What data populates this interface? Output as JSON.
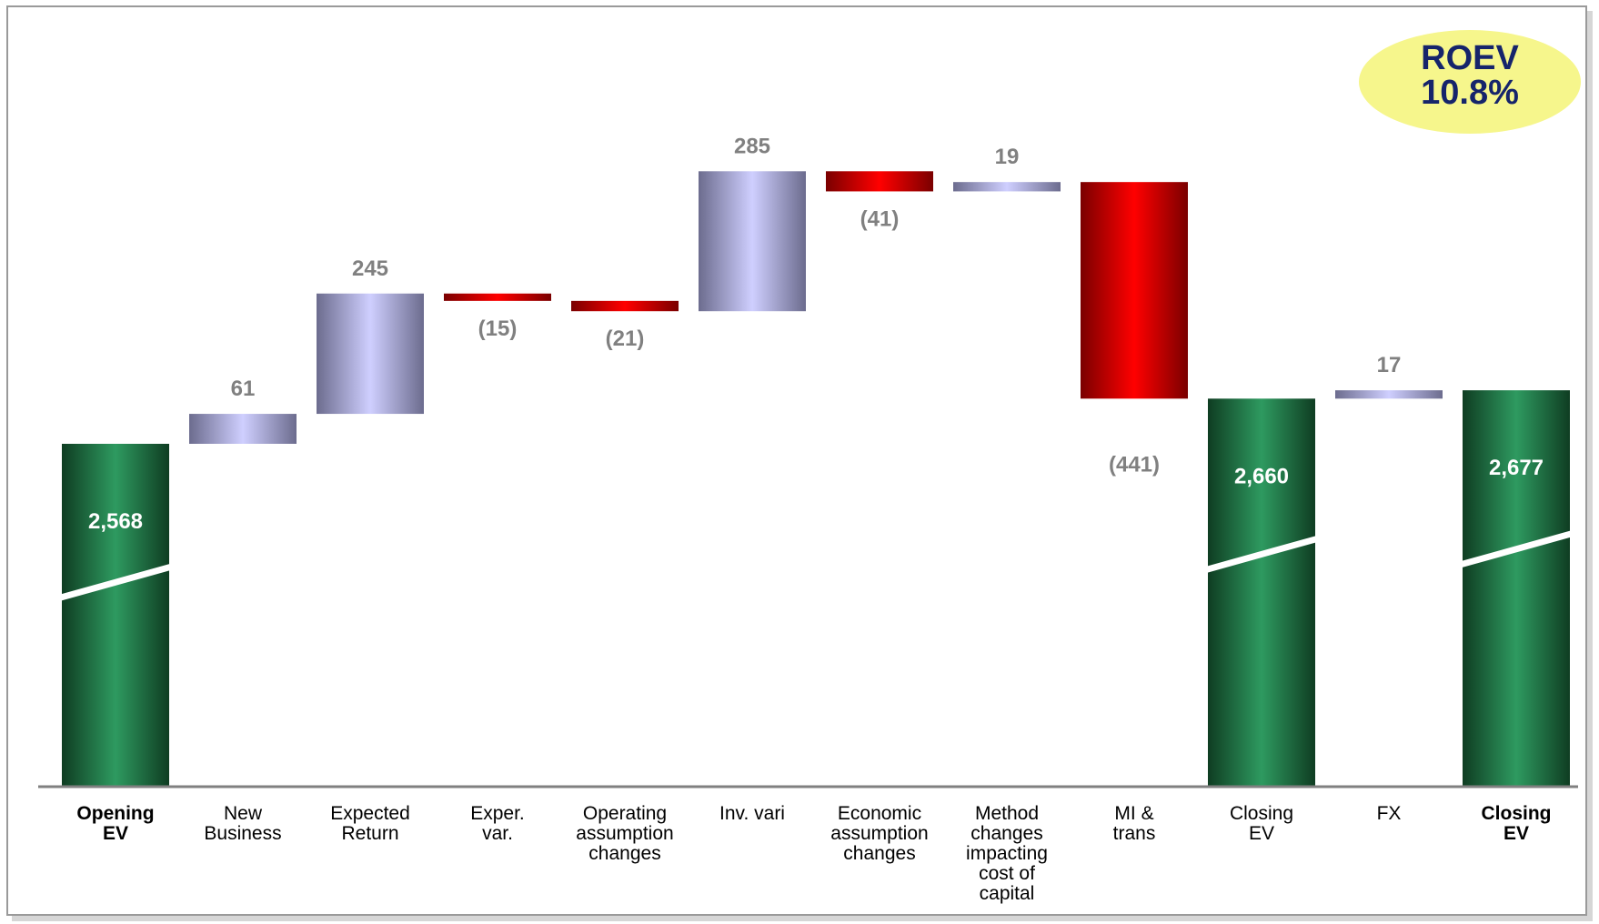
{
  "chart_data": {
    "type": "bar",
    "subtype": "waterfall",
    "categories": [
      [
        "Opening",
        "EV"
      ],
      [
        "New",
        "Business"
      ],
      [
        "Expected",
        "Return"
      ],
      [
        "Exper.",
        "var."
      ],
      [
        "Operating",
        "assumption",
        "changes"
      ],
      [
        "Inv. vari"
      ],
      [
        "Economic",
        "assumption",
        "changes"
      ],
      [
        "Method",
        "changes",
        "impacting",
        "cost of",
        "capital"
      ],
      [
        "MI &",
        "trans"
      ],
      [
        "Closing",
        "EV"
      ],
      [
        "FX"
      ],
      [
        "Closing",
        "EV"
      ]
    ],
    "category_bold": [
      true,
      false,
      false,
      false,
      false,
      false,
      false,
      false,
      false,
      false,
      false,
      true
    ],
    "kinds": [
      "total",
      "delta",
      "delta",
      "delta",
      "delta",
      "delta",
      "delta",
      "delta",
      "delta",
      "total",
      "delta",
      "total"
    ],
    "values": [
      2568,
      61,
      245,
      -15,
      -21,
      285,
      -41,
      19,
      -441,
      2660,
      17,
      2677
    ],
    "value_labels": [
      "2,568",
      "61",
      "245",
      "(15)",
      "(21)",
      "285",
      "(41)",
      "19",
      "(441)",
      "2,660",
      "17",
      "2,677"
    ],
    "axis_break": true,
    "colors": {
      "total_dark": "#0f3d22",
      "total_light": "#2e9a60",
      "positive_dark": "#6c6c8e",
      "positive_light": "#cfcfff",
      "negative_dark": "#7a0000",
      "negative_light": "#ff0000",
      "axis": "#808080",
      "value_label": "#808080"
    }
  },
  "badge": {
    "line1": "ROEV",
    "line2": "10.8%",
    "fill": "#f6f68c",
    "text_color": "#16246b"
  }
}
